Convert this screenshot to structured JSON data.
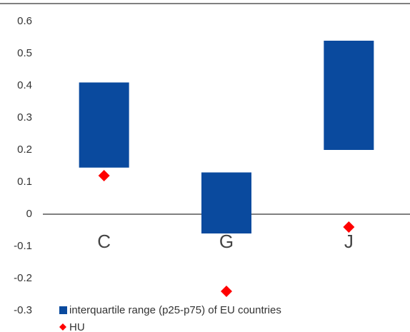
{
  "chart_data": {
    "type": "bar",
    "categories": [
      "C",
      "G",
      "J"
    ],
    "series": [
      {
        "name": "interquartile range (p25-p75) of EU countries",
        "color": "#0a4a9e",
        "low": [
          0.145,
          -0.06,
          0.2
        ],
        "high": [
          0.41,
          0.13,
          0.54
        ]
      },
      {
        "name": "HU",
        "color": "#ff0000",
        "values": [
          0.12,
          -0.24,
          -0.04
        ]
      }
    ],
    "ylim": [
      -0.3,
      0.6
    ],
    "yticks": [
      -0.3,
      -0.2,
      -0.1,
      0,
      0.1,
      0.2,
      0.3,
      0.4,
      0.5,
      0.6
    ]
  }
}
